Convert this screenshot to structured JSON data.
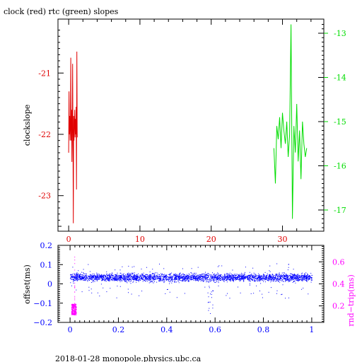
{
  "title": "clock (red) rtc (green) slopes",
  "footer": "2018-01-28  monopole.physics.ubc.ca",
  "colors": {
    "red": "#e00000",
    "green": "#00dd00",
    "blue": "#0000ff",
    "magenta": "#ff00ff",
    "black": "#000000"
  },
  "chart_data": [
    {
      "type": "line",
      "title": "clock (red) rtc (green) slopes",
      "xlabel": "",
      "ylabel": "clockslope",
      "y2label": "",
      "xlim": [
        -1.5,
        35.8
      ],
      "ylim": [
        -23.58,
        -20.12
      ],
      "y2lim": [
        -17.48,
        -12.68
      ],
      "xticks": [
        "0",
        "10",
        "20",
        "30"
      ],
      "yticks": [
        "-21",
        "-22",
        "-23"
      ],
      "y2ticks": [
        "-13",
        "-14",
        "-15",
        "-16",
        "-17"
      ],
      "grid": false,
      "series": [
        {
          "name": "clock",
          "color": "#e00000",
          "axis": "left",
          "x": [
            0.0,
            0.05,
            0.1,
            0.15,
            0.2,
            0.25,
            0.3,
            0.35,
            0.4,
            0.45,
            0.5,
            0.55,
            0.6,
            0.65,
            0.7,
            0.75,
            0.8,
            0.85,
            0.9,
            0.95,
            1.0,
            1.05,
            1.1,
            1.15,
            1.2
          ],
          "values": [
            -22.3,
            -21.3,
            -22.0,
            -21.7,
            -22.1,
            -21.9,
            -20.75,
            -22.1,
            -21.6,
            -22.45,
            -21.9,
            -20.85,
            -22.1,
            -23.45,
            -21.7,
            -22.1,
            -21.8,
            -21.6,
            -22.05,
            -21.75,
            -22.0,
            -21.55,
            -22.9,
            -20.65,
            -22.05
          ]
        },
        {
          "name": "rtc",
          "color": "#00dd00",
          "axis": "right",
          "x": [
            28.8,
            29.0,
            29.2,
            29.4,
            29.6,
            29.8,
            30.0,
            30.2,
            30.4,
            30.6,
            30.8,
            31.0,
            31.2,
            31.4,
            31.6,
            31.8,
            32.0,
            32.2,
            32.4,
            32.6,
            32.8,
            33.0,
            33.2,
            33.4
          ],
          "values": [
            -15.6,
            -16.4,
            -15.1,
            -15.4,
            -14.9,
            -15.6,
            -14.8,
            -15.2,
            -15.5,
            -15.0,
            -15.8,
            -15.3,
            -12.8,
            -17.2,
            -15.1,
            -15.7,
            -14.6,
            -15.9,
            -15.2,
            -16.3,
            -15.0,
            -15.5,
            -15.8,
            -15.6
          ]
        }
      ]
    },
    {
      "type": "scatter",
      "title": "",
      "xlabel": "",
      "ylabel": "offset(ms)",
      "y2label": "rnd−trip(ms)",
      "xlim": [
        -0.05,
        1.05
      ],
      "ylim": [
        -0.2,
        0.2
      ],
      "y2lim": [
        0.05,
        0.75
      ],
      "xticks": [
        "0",
        "0.2",
        "0.4",
        "0.6",
        "0.8",
        "1"
      ],
      "yticks": [
        "0.2",
        "0.1",
        "0",
        "−0.1",
        "−0.2"
      ],
      "y2ticks": [
        "0.6",
        "0.4",
        "0.2"
      ],
      "grid": false,
      "series": [
        {
          "name": "offset",
          "color": "#0000ff",
          "axis": "left",
          "x_range": [
            0.0,
            1.0
          ],
          "band_center": 0.035,
          "band_halfwidth": 0.03,
          "dip": {
            "x": 0.58,
            "min": -0.16
          }
        },
        {
          "name": "rnd-trip",
          "color": "#ff00ff",
          "axis": "right",
          "x_range": [
            0.005,
            0.025
          ],
          "y_range": [
            0.12,
            0.22
          ]
        }
      ]
    }
  ]
}
